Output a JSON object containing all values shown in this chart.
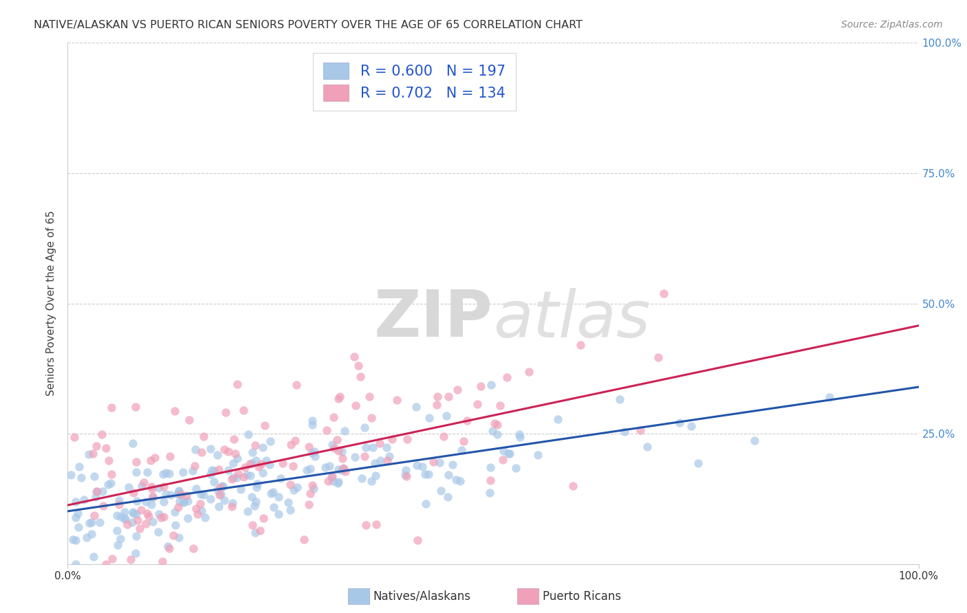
{
  "title": "NATIVE/ALASKAN VS PUERTO RICAN SENIORS POVERTY OVER THE AGE OF 65 CORRELATION CHART",
  "source": "Source: ZipAtlas.com",
  "ylabel": "Seniors Poverty Over the Age of 65",
  "watermark_zip": "ZIP",
  "watermark_atlas": "atlas",
  "blue_R": 0.6,
  "blue_N": 197,
  "pink_R": 0.702,
  "pink_N": 134,
  "blue_color": "#a8c8e8",
  "pink_color": "#f0a0b8",
  "blue_line_color": "#2255aa",
  "pink_line_color": "#cc2255",
  "legend_text_color": "#2255cc",
  "title_color": "#333333",
  "source_color": "#888888",
  "grid_color": "#cccccc",
  "background_color": "#ffffff",
  "xlim": [
    0,
    1
  ],
  "ylim": [
    0,
    1
  ],
  "xtick_labels": [
    "0.0%",
    "100.0%"
  ],
  "ytick_labels": [
    "25.0%",
    "50.0%",
    "75.0%",
    "100.0%"
  ],
  "ytick_positions": [
    0.25,
    0.5,
    0.75,
    1.0
  ],
  "right_ytick_color": "#4488cc",
  "blue_seed": 7,
  "pink_seed": 13,
  "blue_intercept": 0.11,
  "blue_slope": 0.21,
  "blue_noise_std": 0.05,
  "pink_intercept": 0.115,
  "pink_slope": 0.36,
  "pink_noise_std": 0.08,
  "marker_size": 80,
  "marker_alpha": 0.7,
  "line_width": 2.2
}
